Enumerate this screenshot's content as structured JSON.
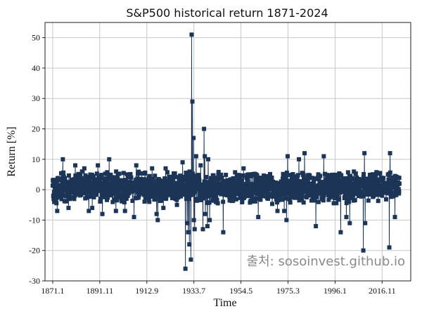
{
  "chart_data": {
    "type": "line",
    "title": "S&P500 historical return 1871-2024",
    "xlabel": "Time",
    "ylabel": "Return [%]",
    "ylim": [
      -30,
      55
    ],
    "yticks": [
      -30,
      -20,
      -10,
      0,
      10,
      20,
      30,
      40,
      50
    ],
    "xlim": [
      1867.6,
      2029.5
    ],
    "xticks": [
      {
        "label": "1871.1",
        "x": 1871.0
      },
      {
        "label": "1891.11",
        "x": 1891.83
      },
      {
        "label": "1912.9",
        "x": 1912.67
      },
      {
        "label": "1933.7",
        "x": 1933.5
      },
      {
        "label": "1954.5",
        "x": 1954.33
      },
      {
        "label": "1975.3",
        "x": 1975.17
      },
      {
        "label": "1996.1",
        "x": 1996.0
      },
      {
        "label": "2016.11",
        "x": 2016.83
      }
    ],
    "grid": true,
    "marker": "square",
    "series_color": "#1c3557",
    "start_year": 1871.0,
    "end_year": 2024.5,
    "typical_range": [
      -5,
      5
    ],
    "extremes": [
      {
        "x": 1873.0,
        "y": -7
      },
      {
        "x": 1875.5,
        "y": 10
      },
      {
        "x": 1878.0,
        "y": -6
      },
      {
        "x": 1881.0,
        "y": 8
      },
      {
        "x": 1884.0,
        "y": 6
      },
      {
        "x": 1885.0,
        "y": 7
      },
      {
        "x": 1887.0,
        "y": -7
      },
      {
        "x": 1888.5,
        "y": -6
      },
      {
        "x": 1891.0,
        "y": 8
      },
      {
        "x": 1893.0,
        "y": -8
      },
      {
        "x": 1896.0,
        "y": 10
      },
      {
        "x": 1899.0,
        "y": -7
      },
      {
        "x": 1903.0,
        "y": -7
      },
      {
        "x": 1907.0,
        "y": -9
      },
      {
        "x": 1908.0,
        "y": 8
      },
      {
        "x": 1915.0,
        "y": 7
      },
      {
        "x": 1917.0,
        "y": -8
      },
      {
        "x": 1917.5,
        "y": -10
      },
      {
        "x": 1920.0,
        "y": -6
      },
      {
        "x": 1921.0,
        "y": 7
      },
      {
        "x": 1926.0,
        "y": -5
      },
      {
        "x": 1928.5,
        "y": 9
      },
      {
        "x": 1929.75,
        "y": -26
      },
      {
        "x": 1930.5,
        "y": -11
      },
      {
        "x": 1931.0,
        "y": -14
      },
      {
        "x": 1931.5,
        "y": -18
      },
      {
        "x": 1932.2,
        "y": -23
      },
      {
        "x": 1932.5,
        "y": 51
      },
      {
        "x": 1932.8,
        "y": 29
      },
      {
        "x": 1933.3,
        "y": 17
      },
      {
        "x": 1933.5,
        "y": -10
      },
      {
        "x": 1933.8,
        "y": -13
      },
      {
        "x": 1934.5,
        "y": 11
      },
      {
        "x": 1936.5,
        "y": 8
      },
      {
        "x": 1937.5,
        "y": -13
      },
      {
        "x": 1938.0,
        "y": 20
      },
      {
        "x": 1938.3,
        "y": 11
      },
      {
        "x": 1938.6,
        "y": -8
      },
      {
        "x": 1939.5,
        "y": -12
      },
      {
        "x": 1939.8,
        "y": 10
      },
      {
        "x": 1940.5,
        "y": -10
      },
      {
        "x": 1946.5,
        "y": -14
      },
      {
        "x": 1955.5,
        "y": 7
      },
      {
        "x": 1962.0,
        "y": -9
      },
      {
        "x": 1970.5,
        "y": -7
      },
      {
        "x": 1973.5,
        "y": -7
      },
      {
        "x": 1974.5,
        "y": -10
      },
      {
        "x": 1975.0,
        "y": 11
      },
      {
        "x": 1980.0,
        "y": 10
      },
      {
        "x": 1982.5,
        "y": 12
      },
      {
        "x": 1987.5,
        "y": -12
      },
      {
        "x": 1991.0,
        "y": 11
      },
      {
        "x": 1998.5,
        "y": -14
      },
      {
        "x": 2001.0,
        "y": -9
      },
      {
        "x": 2002.5,
        "y": -11
      },
      {
        "x": 2008.5,
        "y": -20
      },
      {
        "x": 2009.0,
        "y": 12
      },
      {
        "x": 2009.3,
        "y": -11
      },
      {
        "x": 2020.0,
        "y": -19
      },
      {
        "x": 2020.3,
        "y": 12
      },
      {
        "x": 2022.5,
        "y": -9
      }
    ]
  },
  "watermark": "출처: sosoinvest.github.io"
}
